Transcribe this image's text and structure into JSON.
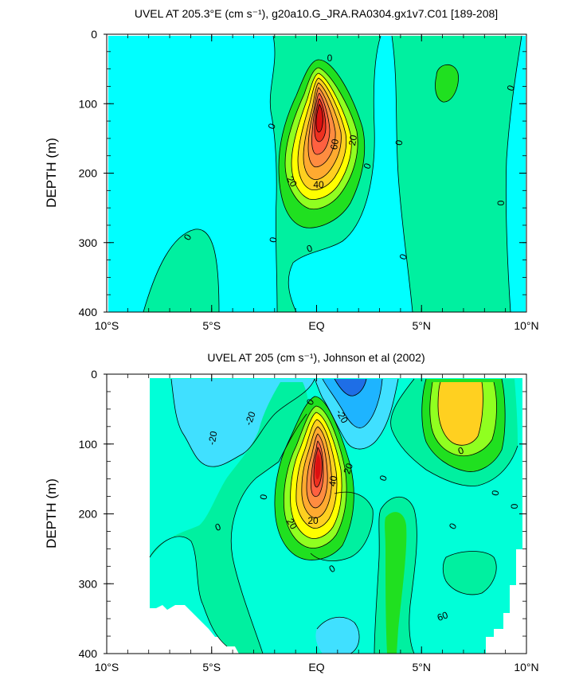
{
  "chart_data": [
    {
      "type": "heatmap",
      "title": "UVEL AT 205.3°E (cm s⁻¹), g20a10.G_JRA.RA0304.gx1v7.C01 [189-208]",
      "xlabel": "",
      "ylabel": "DEPTH (m)",
      "xlim": [
        -10,
        10
      ],
      "ylim": [
        400,
        0
      ],
      "x_ticks": [
        "10°S",
        "5°S",
        "EQ",
        "5°N",
        "10°N"
      ],
      "y_ticks": [
        "0",
        "100",
        "200",
        "300",
        "400"
      ],
      "contour_labels": [
        "0",
        "0",
        "0",
        "0",
        "0",
        "0",
        "0",
        "0",
        "0",
        "0",
        "20",
        "20",
        "40",
        "60"
      ],
      "core": {
        "lat": 0,
        "depth": 130,
        "value": 90
      },
      "colors": {
        "neg_10_0": "#00ffff",
        "0_10": "#00f0a0",
        "10_20": "#20e020",
        "20_30": "#90ff20",
        "30_40": "#ffff00",
        "40_50": "#ffd020",
        "50_60": "#ffaa30",
        "60_70": "#ff8c40",
        "70_80": "#ff6040",
        "80_90": "#ee3020",
        "90_plus": "#dd1010"
      }
    },
    {
      "type": "heatmap",
      "title": "UVEL AT 205 (cm s⁻¹), Johnson et al (2002)",
      "xlabel": "",
      "ylabel": "DEPTH (m)",
      "xlim": [
        -10,
        10
      ],
      "ylim": [
        400,
        0
      ],
      "x_ticks": [
        "10°S",
        "5°S",
        "EQ",
        "5°N",
        "10°N"
      ],
      "y_ticks": [
        "0",
        "100",
        "200",
        "300",
        "400"
      ],
      "contour_labels": [
        "-20",
        "-20",
        "-20",
        "0",
        "0",
        "0",
        "0",
        "0",
        "0",
        "0",
        "0",
        "0",
        "20",
        "20",
        "20",
        "40",
        "60"
      ],
      "core": {
        "lat": 0,
        "depth": 130,
        "value": 90
      },
      "westward_core": {
        "lat": 1.5,
        "depth": 10,
        "value": -40
      },
      "colors": {
        "neg_40_30": "#1e6ee6",
        "neg_30_20": "#1eb4ff",
        "neg_20_10": "#40e0ff",
        "neg_10_0": "#00ffd8",
        "0_10": "#00f0a0",
        "10_20": "#20e020",
        "20_30": "#90ff20",
        "30_40": "#ffff00",
        "40_50": "#ffd020",
        "50_60": "#ffaa30",
        "60_70": "#ff8c40",
        "70_80": "#ff6040",
        "80_90": "#ee3020",
        "90_plus": "#dd1010"
      }
    }
  ]
}
